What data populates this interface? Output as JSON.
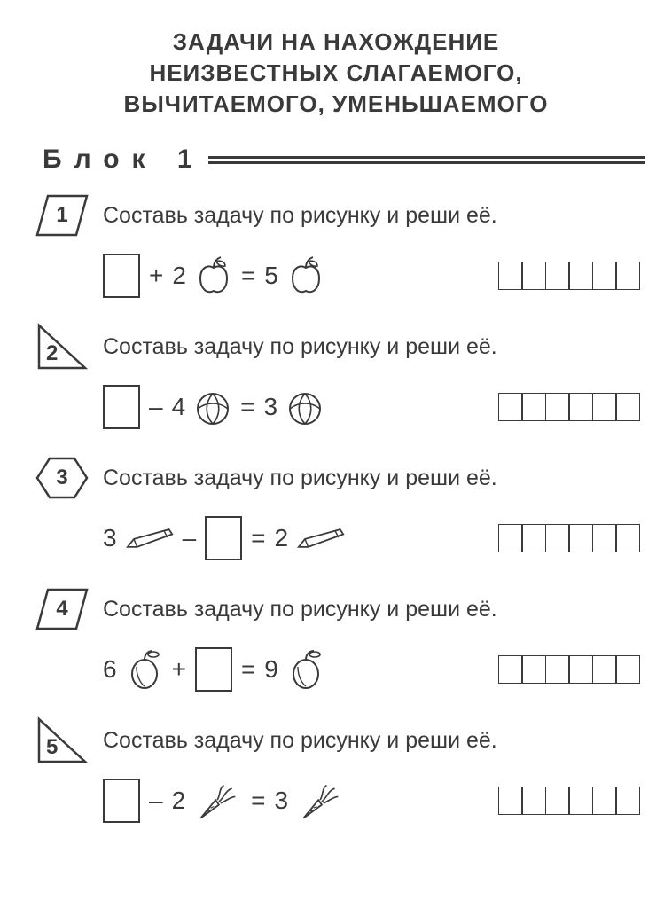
{
  "title_line1": "ЗАДАЧИ НА НАХОЖДЕНИЕ",
  "title_line2": "НЕИЗВЕСТНЫХ СЛАГАЕМОГО,",
  "title_line3": "ВЫЧИТАЕМОГО, УМЕНЬШАЕМОГО",
  "block_label": "Блок 1",
  "answer_cells": 6,
  "colors": {
    "stroke": "#3a3a3a",
    "bg": "#ffffff"
  },
  "problems": [
    {
      "num": "1",
      "marker": "parallelogram",
      "prompt": "Составь задачу по рисунку и реши её.",
      "equation": [
        {
          "t": "blank"
        },
        {
          "t": "op",
          "v": "+"
        },
        {
          "t": "num",
          "v": "2"
        },
        {
          "t": "icon",
          "v": "apple"
        },
        {
          "t": "op",
          "v": "="
        },
        {
          "t": "num",
          "v": "5"
        },
        {
          "t": "icon",
          "v": "apple"
        }
      ]
    },
    {
      "num": "2",
      "marker": "triangle",
      "prompt": "Составь задачу по рисунку и реши её.",
      "equation": [
        {
          "t": "blank"
        },
        {
          "t": "op",
          "v": "–"
        },
        {
          "t": "num",
          "v": "4"
        },
        {
          "t": "icon",
          "v": "ball"
        },
        {
          "t": "op",
          "v": "="
        },
        {
          "t": "num",
          "v": "3"
        },
        {
          "t": "icon",
          "v": "ball"
        }
      ]
    },
    {
      "num": "3",
      "marker": "hexagon",
      "prompt": "Составь задачу по рисунку и реши её.",
      "equation": [
        {
          "t": "num",
          "v": "3"
        },
        {
          "t": "icon",
          "v": "pencil"
        },
        {
          "t": "op",
          "v": "–"
        },
        {
          "t": "blank"
        },
        {
          "t": "op",
          "v": "="
        },
        {
          "t": "num",
          "v": "2"
        },
        {
          "t": "icon",
          "v": "pencil"
        }
      ]
    },
    {
      "num": "4",
      "marker": "parallelogram",
      "prompt": "Составь задачу по рисунку и реши её.",
      "equation": [
        {
          "t": "num",
          "v": "6"
        },
        {
          "t": "icon",
          "v": "plum"
        },
        {
          "t": "op",
          "v": "+"
        },
        {
          "t": "blank"
        },
        {
          "t": "op",
          "v": "="
        },
        {
          "t": "num",
          "v": "9"
        },
        {
          "t": "icon",
          "v": "plum"
        }
      ]
    },
    {
      "num": "5",
      "marker": "triangle",
      "prompt": "Составь задачу по рисунку и реши её.",
      "equation": [
        {
          "t": "blank"
        },
        {
          "t": "op",
          "v": "–"
        },
        {
          "t": "num",
          "v": "2"
        },
        {
          "t": "icon",
          "v": "carrot"
        },
        {
          "t": "op",
          "v": "="
        },
        {
          "t": "num",
          "v": "3"
        },
        {
          "t": "icon",
          "v": "carrot"
        }
      ]
    }
  ]
}
